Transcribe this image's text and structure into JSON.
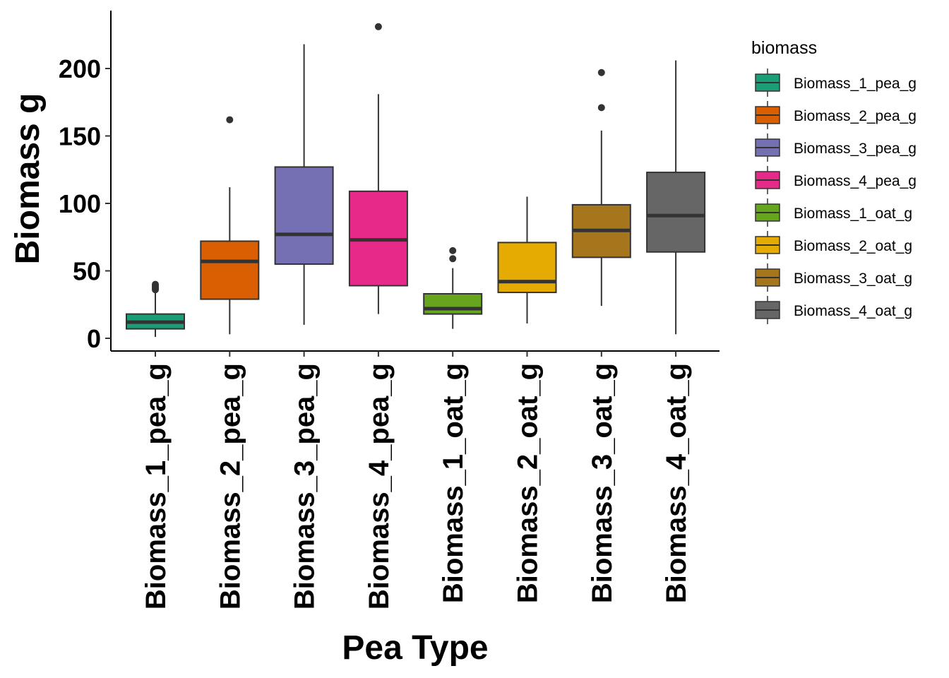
{
  "chart_data": {
    "type": "boxplot",
    "xlabel": "Pea Type",
    "ylabel": "Biomass g",
    "ylim": [
      -9,
      243
    ],
    "yticks": [
      0,
      50,
      100,
      150,
      200
    ],
    "grid": false,
    "legend": {
      "title": "biomass",
      "position": "right"
    },
    "series": [
      {
        "name": "Biomass_1_pea_g",
        "color": "#1B9E77",
        "min": 1,
        "q1": 7,
        "median": 12,
        "q3": 18,
        "max": 34,
        "outliers": [
          36,
          37,
          38,
          39,
          40
        ]
      },
      {
        "name": "Biomass_2_pea_g",
        "color": "#D95F02",
        "min": 3,
        "q1": 29,
        "median": 57,
        "q3": 72,
        "max": 112,
        "outliers": [
          162
        ]
      },
      {
        "name": "Biomass_3_pea_g",
        "color": "#7570B3",
        "min": 10,
        "q1": 55,
        "median": 77,
        "q3": 127,
        "max": 218,
        "outliers": []
      },
      {
        "name": "Biomass_4_pea_g",
        "color": "#E7298A",
        "min": 18,
        "q1": 39,
        "median": 73,
        "q3": 109,
        "max": 181,
        "outliers": [
          231
        ]
      },
      {
        "name": "Biomass_1_oat_g",
        "color": "#66A61E",
        "min": 7,
        "q1": 18,
        "median": 22,
        "q3": 33,
        "max": 52,
        "outliers": [
          59,
          65
        ]
      },
      {
        "name": "Biomass_2_oat_g",
        "color": "#E6AB02",
        "min": 11,
        "q1": 34,
        "median": 42,
        "q3": 71,
        "max": 105,
        "outliers": []
      },
      {
        "name": "Biomass_3_oat_g",
        "color": "#A6761D",
        "min": 24,
        "q1": 60,
        "median": 80,
        "q3": 99,
        "max": 154,
        "outliers": [
          171,
          197
        ]
      },
      {
        "name": "Biomass_4_oat_g",
        "color": "#666666",
        "min": 3,
        "q1": 64,
        "median": 91,
        "q3": 123,
        "max": 206,
        "outliers": []
      }
    ]
  }
}
